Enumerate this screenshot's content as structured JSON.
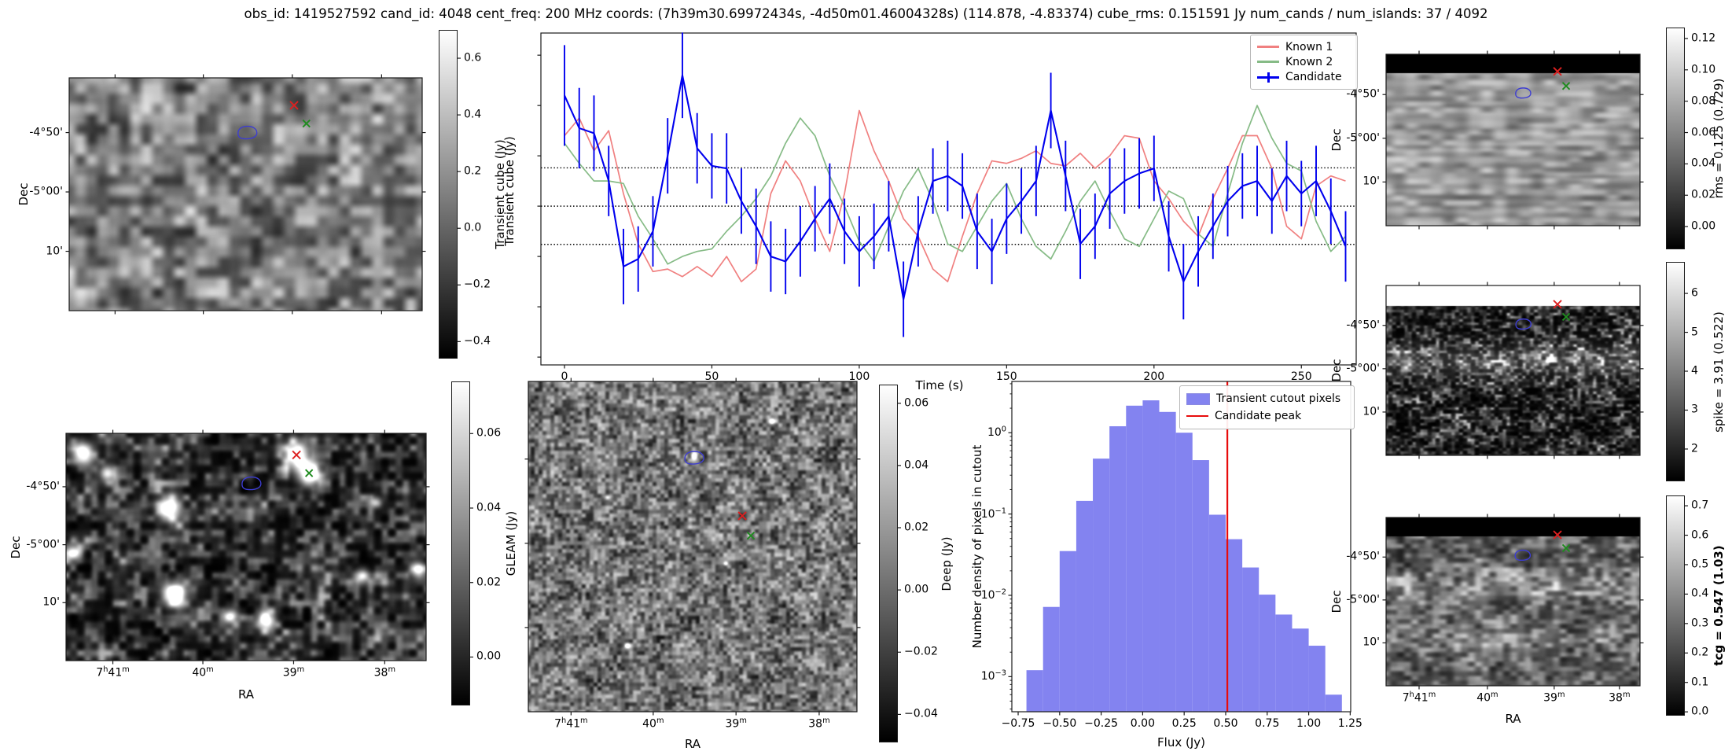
{
  "title": "obs_id: 1419527592 cand_id: 4048 cent_freq: 200 MHz coords: (7h39m30.69972434s, -4d50m01.46004328s) (114.878, -4.83374) cube_rms: 0.151591 Jy num_cands / num_islands: 37 / 4092",
  "colors": {
    "known1": "#f08080",
    "known2": "#86bb86",
    "candidate": "#0000ee",
    "hist_bar": "#8383f0",
    "candidate_peak": "#e80c0c",
    "contour": "#3d3dd2",
    "marker_red": "#dd2020",
    "marker_green": "#1f8b1f",
    "spine": "#1a1a1a"
  },
  "axis": {
    "dec_label": "Dec",
    "ra_label": "RA",
    "dec_ticks": [
      {
        "label": "-4°50'",
        "f": 0.235
      },
      {
        "label": "-5°00'",
        "f": 0.49
      },
      {
        "label": "10'",
        "f": 0.745
      }
    ],
    "ra_ticks": [
      {
        "label": "7h41m",
        "f": 0.13
      },
      {
        "label": "40m",
        "f": 0.38
      },
      {
        "label": "39m",
        "f": 0.632
      },
      {
        "label": "38m",
        "f": 0.885
      }
    ],
    "ra_ticks_right": [
      {
        "label": "7h41m",
        "f": 0.13
      },
      {
        "label": "40m",
        "f": 0.399
      },
      {
        "label": "39m",
        "f": 0.662
      },
      {
        "label": "38m",
        "f": 0.919
      }
    ]
  },
  "colorbars": {
    "transient": {
      "label": "Transient cube (Jy)",
      "vmin": -0.46,
      "vmax": 0.7,
      "ticks": [
        0.6,
        0.4,
        0.2,
        0.0,
        -0.2,
        -0.4
      ],
      "decimals": 1,
      "bold": false
    },
    "gleam": {
      "label": "GLEAM (Jy)",
      "vmin": -0.013,
      "vmax": 0.074,
      "ticks": [
        0.06,
        0.04,
        0.02,
        0.0
      ],
      "decimals": 2,
      "bold": false
    },
    "deep": {
      "label": "Deep (Jy)",
      "vmin": -0.049,
      "vmax": 0.066,
      "ticks": [
        0.06,
        0.04,
        0.02,
        0.0,
        -0.02,
        -0.04
      ],
      "decimals": 2,
      "bold": false
    },
    "rms": {
      "label": "rms = 0.125 (0.729)",
      "vmin": -0.0145,
      "vmax": 0.127,
      "ticks": [
        0.12,
        0.1,
        0.08,
        0.06,
        0.04,
        0.02,
        0.0
      ],
      "decimals": 2,
      "bold": false
    },
    "spike": {
      "label": "spike = 3.91 (0.522)",
      "vmin": 1.17,
      "vmax": 6.81,
      "ticks": [
        6,
        5,
        4,
        3,
        2
      ],
      "decimals": 0,
      "bold": false
    },
    "tcg": {
      "label": "tcg = 0.547 (1.03)",
      "vmin": -0.013,
      "vmax": 0.735,
      "ticks": [
        0.7,
        0.6,
        0.5,
        0.4,
        0.3,
        0.2,
        0.1,
        0.0
      ],
      "decimals": 1,
      "bold": true
    }
  },
  "markers": {
    "transient": {
      "red": [
        0.637,
        0.118
      ],
      "green": [
        0.672,
        0.196
      ],
      "contour": [
        0.505,
        0.235
      ]
    },
    "gleam": {
      "red": [
        0.64,
        0.095
      ],
      "green": [
        0.675,
        0.175
      ],
      "contour": [
        0.515,
        0.22
      ]
    },
    "deep": {
      "red": [
        0.651,
        0.407
      ],
      "green": [
        0.677,
        0.467
      ],
      "contour": [
        0.505,
        0.231
      ]
    },
    "rms": {
      "red": [
        0.675,
        0.1
      ],
      "green": [
        0.709,
        0.185
      ],
      "contour": [
        0.54,
        0.226
      ]
    },
    "spike": {
      "red": [
        0.675,
        0.111
      ],
      "green": [
        0.709,
        0.185
      ],
      "contour": [
        0.541,
        0.227
      ]
    },
    "tcg": {
      "red": [
        0.675,
        0.103
      ],
      "green": [
        0.709,
        0.182
      ],
      "contour": [
        0.538,
        0.224
      ]
    }
  },
  "chart_data": [
    {
      "type": "line",
      "xlabel": "Time (s)",
      "ylabel": "Transient cube (Jy)",
      "xlim": [
        -8,
        268.6
      ],
      "ylim": [
        -0.631,
        0.688
      ],
      "x_ticks": [
        0,
        50,
        100,
        150,
        200,
        250
      ],
      "y_ticks_unlabeled": [
        0.6,
        0.4,
        0.2,
        0.0,
        -0.2,
        -0.4,
        -0.6
      ],
      "hlines": {
        "values": [
          0.152,
          0.0,
          -0.152
        ],
        "style": "dotted"
      },
      "legend_position": "upper right",
      "grid": false,
      "x": [
        0,
        5,
        10,
        15,
        20,
        25,
        30,
        35,
        40,
        45,
        50,
        55,
        60,
        65,
        70,
        75,
        80,
        85,
        90,
        95,
        100,
        105,
        110,
        115,
        120,
        125,
        130,
        135,
        140,
        145,
        150,
        155,
        160,
        165,
        170,
        175,
        180,
        185,
        190,
        195,
        200,
        205,
        210,
        215,
        220,
        225,
        230,
        235,
        240,
        245,
        250,
        255,
        260,
        265
      ],
      "series": [
        {
          "name": "Known 1",
          "color_key": "known1",
          "values": [
            0.28,
            0.35,
            0.22,
            0.3,
            0.05,
            -0.15,
            -0.26,
            -0.25,
            -0.28,
            -0.24,
            -0.28,
            -0.2,
            -0.3,
            -0.25,
            0.05,
            0.18,
            0.1,
            -0.05,
            -0.18,
            0.05,
            0.38,
            0.22,
            0.1,
            -0.05,
            -0.12,
            -0.25,
            -0.3,
            -0.12,
            0.05,
            0.18,
            0.17,
            0.19,
            0.22,
            0.17,
            0.16,
            0.21,
            0.15,
            0.2,
            0.28,
            0.27,
            0.1,
            0.03,
            -0.06,
            -0.12,
            0.03,
            0.15,
            0.28,
            0.28,
            0.15,
            -0.08,
            -0.13,
            0.08,
            0.12,
            0.1
          ]
        },
        {
          "name": "Known 2",
          "color_key": "known2",
          "values": [
            0.25,
            0.17,
            0.1,
            0.1,
            0.09,
            -0.04,
            -0.13,
            -0.23,
            -0.2,
            -0.18,
            -0.17,
            -0.1,
            -0.04,
            0.03,
            0.12,
            0.25,
            0.35,
            0.28,
            0.12,
            0.0,
            -0.14,
            -0.22,
            -0.08,
            0.06,
            0.15,
            0.02,
            -0.15,
            -0.18,
            -0.08,
            0.02,
            0.09,
            -0.05,
            -0.16,
            -0.21,
            -0.1,
            0.02,
            0.1,
            -0.02,
            -0.13,
            -0.16,
            -0.05,
            0.06,
            0.03,
            -0.11,
            -0.16,
            0.05,
            0.25,
            0.4,
            0.27,
            0.17,
            0.14,
            -0.06,
            -0.18,
            -0.12
          ]
        },
        {
          "name": "Candidate",
          "color_key": "candidate",
          "values": [
            0.44,
            0.31,
            0.29,
            0.1,
            -0.24,
            -0.21,
            -0.1,
            0.2,
            0.52,
            0.23,
            0.16,
            0.15,
            0.02,
            -0.08,
            -0.2,
            -0.22,
            -0.14,
            -0.05,
            0.03,
            -0.1,
            -0.18,
            -0.12,
            -0.04,
            -0.37,
            -0.1,
            0.1,
            0.12,
            0.08,
            -0.1,
            -0.18,
            -0.05,
            0.02,
            0.1,
            0.38,
            0.12,
            -0.15,
            -0.08,
            0.05,
            0.1,
            0.13,
            0.15,
            -0.12,
            -0.3,
            -0.18,
            -0.08,
            0.02,
            0.08,
            0.1,
            0.02,
            0.12,
            0.05,
            0.1,
            -0.02,
            -0.16
          ],
          "errors": [
            0.2,
            0.16,
            0.15,
            0.14,
            0.15,
            0.13,
            0.14,
            0.15,
            0.17,
            0.14,
            0.13,
            0.14,
            0.13,
            0.15,
            0.14,
            0.13,
            0.14,
            0.13,
            0.14,
            0.13,
            0.14,
            0.13,
            0.14,
            0.15,
            0.14,
            0.13,
            0.14,
            0.13,
            0.15,
            0.13,
            0.14,
            0.13,
            0.14,
            0.15,
            0.14,
            0.14,
            0.13,
            0.14,
            0.13,
            0.14,
            0.13,
            0.14,
            0.15,
            0.14,
            0.13,
            0.14,
            0.13,
            0.14,
            0.13,
            0.14,
            0.13,
            0.14,
            0.13,
            0.14
          ]
        }
      ]
    },
    {
      "type": "bar",
      "xlabel": "Flux (Jy)",
      "ylabel": "Number density of pixels in cutout",
      "yscale": "log",
      "xlim": [
        -0.788,
        1.253
      ],
      "ylim": [
        0.00037,
        4.27
      ],
      "x_ticks": [
        -0.75,
        -0.5,
        -0.25,
        0.0,
        0.25,
        0.5,
        0.75,
        1.0,
        1.25
      ],
      "y_tick_exponents": [
        0,
        -1,
        -2,
        -3
      ],
      "bin_start": -0.7,
      "bin_width": 0.1,
      "densities": [
        0.0012,
        0.0072,
        0.035,
        0.145,
        0.48,
        1.2,
        2.15,
        2.5,
        1.8,
        1.0,
        0.46,
        0.098,
        0.049,
        0.022,
        0.0102,
        0.0058,
        0.0039,
        0.0024,
        0.0006
      ],
      "candidate_peak": 0.51,
      "legend": [
        {
          "label": "Transient cutout pixels",
          "swatch": "patch",
          "color_key": "hist_bar"
        },
        {
          "label": "Candidate peak",
          "swatch": "line",
          "color_key": "candidate_peak"
        }
      ],
      "legend_position": "upper right"
    }
  ]
}
